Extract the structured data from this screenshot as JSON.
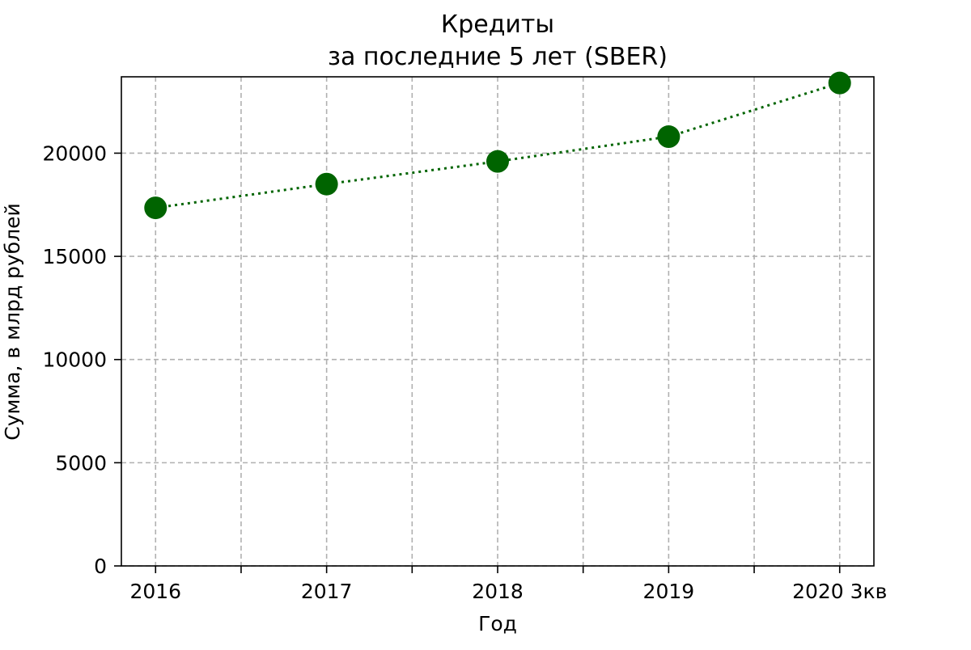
{
  "chart_data": {
    "type": "line",
    "title": "Кредиты",
    "subtitle": "за последние 5 лет (SBER)",
    "xlabel": "Год",
    "ylabel": "Сумма, в млрд рублей",
    "categories": [
      "2016",
      "2017",
      "2018",
      "2019",
      "2020 3кв"
    ],
    "series": [
      {
        "values": [
          17350,
          18500,
          19600,
          20800,
          23400
        ]
      }
    ],
    "ylim": [
      0,
      23700
    ],
    "yticks": [
      0,
      5000,
      10000,
      15000,
      20000
    ],
    "grid": true,
    "line_style": "dotted",
    "marker": "circle",
    "color": "#006400"
  }
}
